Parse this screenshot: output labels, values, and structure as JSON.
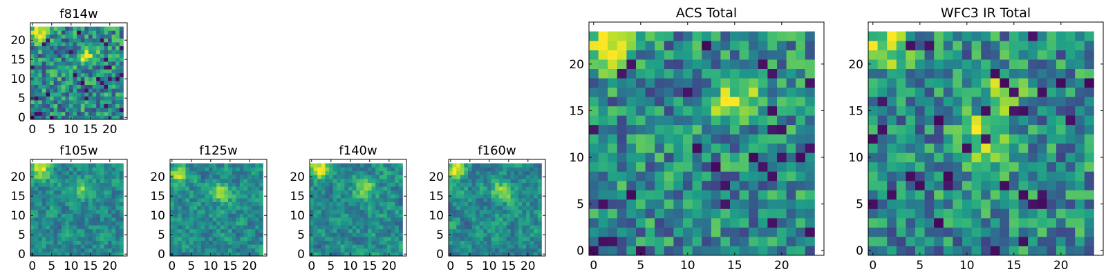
{
  "chart_data": [
    {
      "type": "heatmap",
      "title": "f814w",
      "grid": 24,
      "xlim": [
        -0.5,
        24.5
      ],
      "ylim": [
        -0.5,
        24.5
      ],
      "xticks": [
        0,
        5,
        10,
        15,
        20
      ],
      "yticks": [
        0,
        5,
        10,
        15,
        20
      ],
      "xtick_labels": [
        "0",
        "5",
        "10",
        "15",
        "20"
      ],
      "ytick_labels": [
        "0",
        "5",
        "10",
        "15",
        "20"
      ],
      "colormap": "viridis",
      "bright_spots": [
        [
          1,
          22,
          0.95
        ],
        [
          14,
          16,
          0.8
        ]
      ],
      "texture": "fine",
      "seed": 11
    },
    {
      "type": "heatmap",
      "title": "f105w",
      "grid": 24,
      "xlim": [
        -0.5,
        24.5
      ],
      "ylim": [
        -0.5,
        24.5
      ],
      "xticks": [
        0,
        5,
        10,
        15,
        20
      ],
      "yticks": [
        0,
        5,
        10,
        15,
        20
      ],
      "xtick_labels": [
        "0",
        "5",
        "10",
        "15",
        "20"
      ],
      "ytick_labels": [
        "0",
        "5",
        "10",
        "15",
        "20"
      ],
      "colormap": "viridis",
      "bright_spots": [
        [
          2,
          22,
          0.95
        ],
        [
          13,
          17,
          0.85
        ]
      ],
      "texture": "smooth",
      "seed": 23
    },
    {
      "type": "heatmap",
      "title": "f125w",
      "grid": 24,
      "xlim": [
        -0.5,
        24.5
      ],
      "ylim": [
        -0.5,
        24.5
      ],
      "xticks": [
        0,
        5,
        10,
        15,
        20
      ],
      "yticks": [
        0,
        5,
        10,
        15,
        20
      ],
      "xtick_labels": [
        "0",
        "5",
        "10",
        "15",
        "20"
      ],
      "ytick_labels": [
        "0",
        "5",
        "10",
        "15",
        "20"
      ],
      "colormap": "viridis",
      "bright_spots": [
        [
          2,
          21,
          0.9
        ],
        [
          13,
          16,
          0.85
        ]
      ],
      "texture": "smooth",
      "seed": 37
    },
    {
      "type": "heatmap",
      "title": "f140w",
      "grid": 24,
      "xlim": [
        -0.5,
        24.5
      ],
      "ylim": [
        -0.5,
        24.5
      ],
      "xticks": [
        0,
        5,
        10,
        15,
        20
      ],
      "yticks": [
        0,
        5,
        10,
        15,
        20
      ],
      "xtick_labels": [
        "0",
        "5",
        "10",
        "15",
        "20"
      ],
      "ytick_labels": [
        "0",
        "5",
        "10",
        "15",
        "20"
      ],
      "colormap": "viridis",
      "bright_spots": [
        [
          2,
          22,
          0.95
        ],
        [
          14,
          17,
          0.85
        ]
      ],
      "texture": "smooth",
      "seed": 41
    },
    {
      "type": "heatmap",
      "title": "f160w",
      "grid": 24,
      "xlim": [
        -0.5,
        24.5
      ],
      "ylim": [
        -0.5,
        24.5
      ],
      "xticks": [
        0,
        5,
        10,
        15,
        20
      ],
      "yticks": [
        0,
        5,
        10,
        15,
        20
      ],
      "xtick_labels": [
        "0",
        "5",
        "10",
        "15",
        "20"
      ],
      "ytick_labels": [
        "0",
        "5",
        "10",
        "15",
        "20"
      ],
      "colormap": "viridis",
      "bright_spots": [
        [
          1,
          22,
          0.95
        ],
        [
          13,
          16,
          0.85
        ]
      ],
      "texture": "smooth",
      "seed": 53
    },
    {
      "type": "heatmap",
      "title": "ACS Total",
      "grid": 24,
      "xlim": [
        -0.5,
        24.5
      ],
      "ylim": [
        -0.5,
        24.5
      ],
      "xticks": [
        0,
        5,
        10,
        15,
        20
      ],
      "yticks": [
        0,
        5,
        10,
        15,
        20
      ],
      "xtick_labels": [
        "0",
        "5",
        "10",
        "15",
        "20"
      ],
      "ytick_labels": [
        "0",
        "5",
        "10",
        "15",
        "20"
      ],
      "colormap": "viridis",
      "bright_spots": [
        [
          1,
          22,
          1.0
        ],
        [
          15,
          16,
          0.85
        ]
      ],
      "texture": "fine",
      "seed": 11
    },
    {
      "type": "heatmap",
      "title": "WFC3 IR Total",
      "grid": 24,
      "xlim": [
        -0.5,
        24.5
      ],
      "ylim": [
        -0.5,
        24.5
      ],
      "xticks": [
        0,
        5,
        10,
        15,
        20
      ],
      "yticks": [
        0,
        5,
        10,
        15,
        20
      ],
      "xtick_labels": [
        "0",
        "5",
        "10",
        "15",
        "20"
      ],
      "ytick_labels": [
        "0",
        "5",
        "10",
        "15",
        "20"
      ],
      "colormap": "viridis",
      "bright_spots": [
        [
          1,
          22,
          0.95
        ],
        [
          12,
          12,
          0.95
        ],
        [
          14,
          17,
          0.85
        ]
      ],
      "texture": "fine",
      "seed": 67
    }
  ]
}
